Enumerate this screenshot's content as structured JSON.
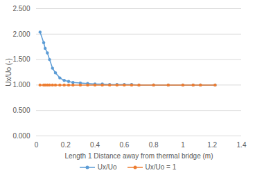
{
  "chart_data": {
    "type": "line",
    "x_label": "Length 1 Distance away from thermal bridge (m)",
    "y_label": "Ux/Uo (-)",
    "x": [
      0.025,
      0.05,
      0.06,
      0.075,
      0.09,
      0.11,
      0.13,
      0.16,
      0.19,
      0.22,
      0.25,
      0.3,
      0.35,
      0.4,
      0.45,
      0.5,
      0.55,
      0.6,
      0.65,
      0.7,
      0.8,
      0.9,
      1.0,
      1.07,
      1.12,
      1.22
    ],
    "series": [
      {
        "name": "Ux/Uo",
        "color": "#5b9bd5",
        "marker": "circle",
        "line_style": "solid",
        "values": [
          2.04,
          1.83,
          1.72,
          1.63,
          1.5,
          1.33,
          1.24,
          1.14,
          1.09,
          1.07,
          1.05,
          1.04,
          1.03,
          1.02,
          1.02,
          1.01,
          1.01,
          1.01,
          1.01,
          1.0,
          1.0,
          1.0,
          1.0,
          1.0,
          1.0,
          1.0
        ]
      },
      {
        "name": "Ux/Uo = 1",
        "color": "#ed7d31",
        "marker": "circle",
        "line_style": "solid",
        "values": [
          1,
          1,
          1,
          1,
          1,
          1,
          1,
          1,
          1,
          1,
          1,
          1,
          1,
          1,
          1,
          1,
          1,
          1,
          1,
          1,
          1,
          1,
          1,
          1,
          1,
          1
        ]
      }
    ],
    "xlim": [
      0,
      1.4
    ],
    "xticks": [
      0,
      0.2,
      0.4,
      0.6,
      0.8,
      1,
      1.2,
      1.4
    ],
    "ylim": [
      0,
      2.5
    ],
    "yticks": [
      {
        "value": 0,
        "label": "0.000"
      },
      {
        "value": 0.5,
        "label": "0.500"
      },
      {
        "value": 1,
        "label": "1.000"
      },
      {
        "value": 1.5,
        "label": "1.500"
      },
      {
        "value": 2,
        "label": "2.000"
      },
      {
        "value": 2.5,
        "label": "2.500"
      }
    ],
    "grid": true,
    "legend": "bottom"
  }
}
